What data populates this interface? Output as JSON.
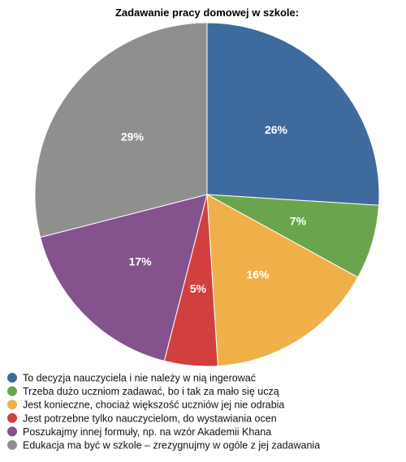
{
  "chart_data": {
    "type": "pie",
    "title": "Zadawanie pracy domowej w szkole:",
    "slices": [
      {
        "label": "To decyzja nauczyciela i nie należy w nią ingerować",
        "value": 26,
        "value_label": "26%",
        "color": "#3f6a9e"
      },
      {
        "label": "Trzeba dużo uczniom zadawać, bo i tak za mało się uczą",
        "value": 7,
        "value_label": "7%",
        "color": "#6aa54d"
      },
      {
        "label": "Jest konieczne, chociaż większość uczniów jej nie odrabia",
        "value": 16,
        "value_label": "16%",
        "color": "#efb04a"
      },
      {
        "label": "Jest potrzebne tylko nauczycielom, do wystawiania ocen",
        "value": 5,
        "value_label": "5%",
        "color": "#d23f3f"
      },
      {
        "label": "Poszukajmy innej formuły, np. na wzór Akademii Khana",
        "value": 17,
        "value_label": "17%",
        "color": "#84528c"
      },
      {
        "label": "Edukacja ma być w szkole – zrezygnujmy w ogóle z jej zadawania",
        "value": 29,
        "value_label": "29%",
        "color": "#8f908e"
      }
    ],
    "legend_position": "bottom"
  }
}
